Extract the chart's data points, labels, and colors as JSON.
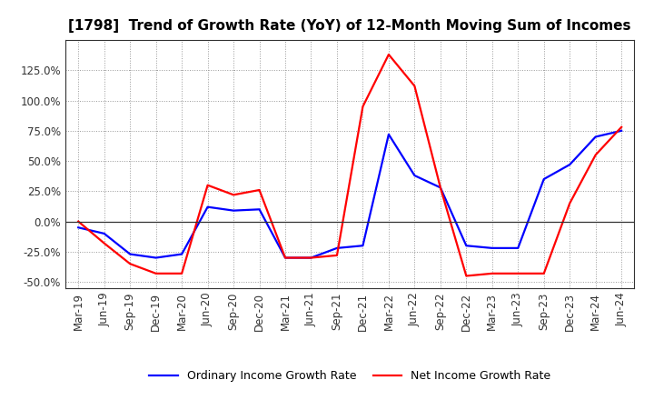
{
  "title": "[1798]  Trend of Growth Rate (YoY) of 12-Month Moving Sum of Incomes",
  "x_labels": [
    "Mar-19",
    "Jun-19",
    "Sep-19",
    "Dec-19",
    "Mar-20",
    "Jun-20",
    "Sep-20",
    "Dec-20",
    "Mar-21",
    "Jun-21",
    "Sep-21",
    "Dec-21",
    "Mar-22",
    "Jun-22",
    "Sep-22",
    "Dec-22",
    "Mar-23",
    "Jun-23",
    "Sep-23",
    "Dec-23",
    "Mar-24",
    "Jun-24"
  ],
  "ordinary_income": [
    -5,
    -10,
    -27,
    -30,
    -27,
    12,
    9,
    10,
    -30,
    -30,
    -22,
    -20,
    72,
    38,
    28,
    -20,
    -22,
    -22,
    35,
    47,
    70,
    75
  ],
  "net_income": [
    0,
    -18,
    -35,
    -43,
    -43,
    30,
    22,
    26,
    -30,
    -30,
    -28,
    95,
    138,
    112,
    28,
    -45,
    -43,
    -43,
    -43,
    15,
    55,
    78
  ],
  "ordinary_color": "#0000ff",
  "net_color": "#ff0000",
  "ylim": [
    -55,
    150
  ],
  "yticks": [
    -50,
    -25,
    0,
    25,
    50,
    75,
    100,
    125
  ],
  "legend_ordinary": "Ordinary Income Growth Rate",
  "legend_net": "Net Income Growth Rate",
  "bg_color": "#ffffff",
  "grid_color": "#999999",
  "zero_line_color": "#333333",
  "title_fontsize": 11,
  "tick_fontsize": 8.5,
  "legend_fontsize": 9
}
